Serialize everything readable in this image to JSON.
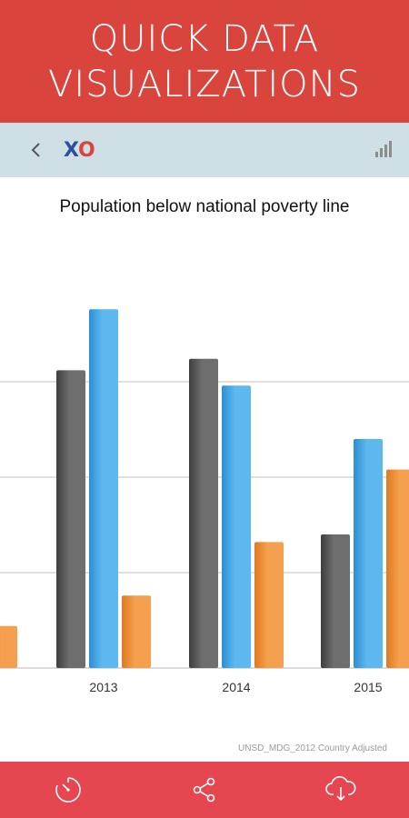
{
  "promo": {
    "line1": "QUICK DATA",
    "line2": "VISUALIZATIONS"
  },
  "toolbar": {
    "back_icon": "chevron-left-icon",
    "logo_x": "X",
    "logo_o": "O",
    "signal_icon": "signal-bars-icon"
  },
  "colors": {
    "banner": "#d9443c",
    "toolbar": "#cfdfe6",
    "bottom_bar": "#e5464f",
    "series_dark": "#555555",
    "series_blue": "#3aa0e0",
    "series_orange": "#ee8a2e"
  },
  "chart_data": {
    "type": "bar",
    "title": "Population below national poverty line",
    "categories": [
      "",
      "2013",
      "2014",
      "2015"
    ],
    "series": [
      {
        "color": "#555555",
        "values": [
          null,
          78,
          81,
          35
        ]
      },
      {
        "color": "#3aa0e0",
        "values": [
          null,
          94,
          74,
          60
        ]
      },
      {
        "color": "#ee8a2e",
        "values": [
          11,
          19,
          33,
          52
        ]
      }
    ],
    "ylim": [
      0,
      100
    ],
    "gridlines": [
      25,
      50,
      75
    ],
    "grid": true
  },
  "source_note": "UNSD_MDG_2012 Country Adjusted",
  "bottom_bar": {
    "icons": [
      "timer-icon",
      "share-icon",
      "cloud-download-icon"
    ]
  }
}
